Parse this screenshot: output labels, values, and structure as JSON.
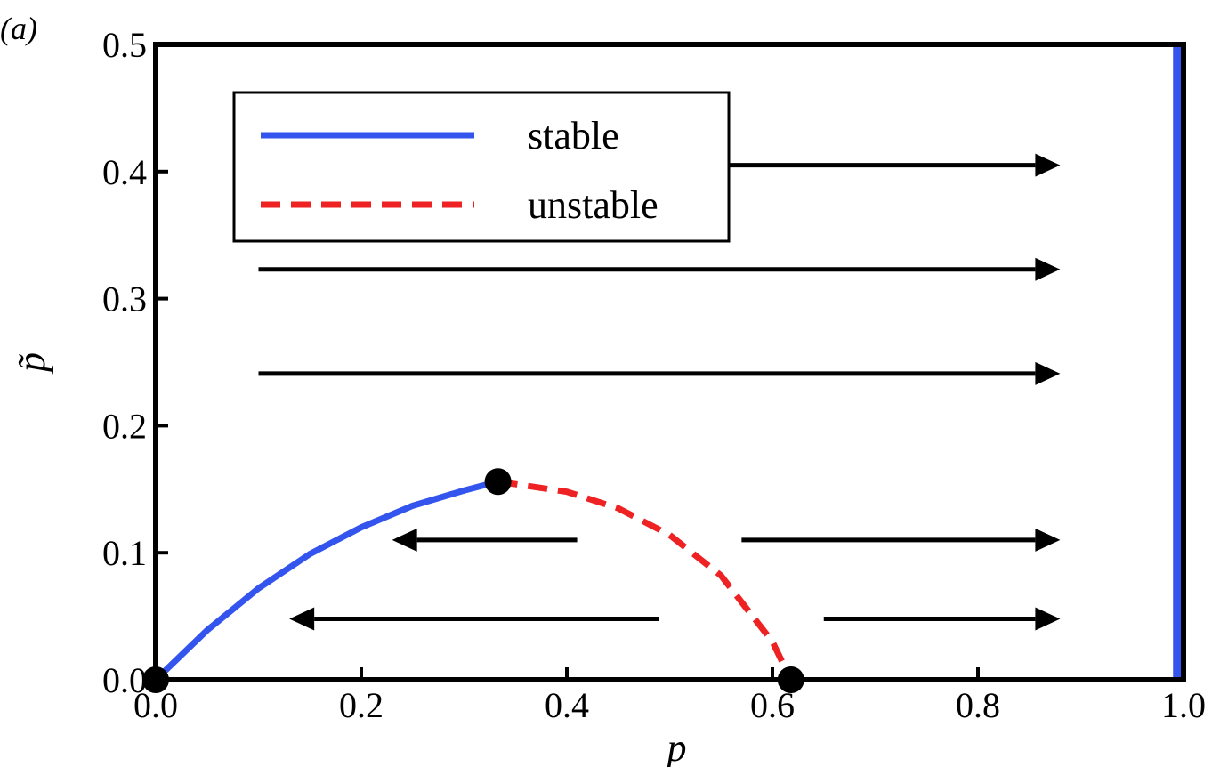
{
  "panel_label": "(a)",
  "chart_data": {
    "type": "line",
    "xlabel": "p",
    "ylabel": "p̃",
    "xlim": [
      0,
      1
    ],
    "ylim": [
      0,
      0.5
    ],
    "xticks": [
      "0.0",
      "0.2",
      "0.4",
      "0.6",
      "0.8",
      "1.0"
    ],
    "yticks": [
      "0.0",
      "0.1",
      "0.2",
      "0.3",
      "0.4",
      "0.5"
    ],
    "grid": false,
    "legend_position": "top-left",
    "legend": [
      {
        "label": "stable",
        "style": "solid",
        "color": "#3355ee"
      },
      {
        "label": "unstable",
        "style": "dashed",
        "color": "#ee2222"
      }
    ],
    "series": [
      {
        "name": "stable",
        "color": "#3355ee",
        "style": "solid",
        "x": [
          0.0,
          0.05,
          0.1,
          0.15,
          0.2,
          0.25,
          0.3,
          0.333
        ],
        "y": [
          0.0,
          0.039,
          0.072,
          0.099,
          0.12,
          0.137,
          0.149,
          0.156
        ]
      },
      {
        "name": "unstable",
        "color": "#ee2222",
        "style": "dashed",
        "x": [
          0.333,
          0.4,
          0.45,
          0.5,
          0.55,
          0.6,
          0.618
        ],
        "y": [
          0.156,
          0.148,
          0.135,
          0.114,
          0.082,
          0.03,
          0.0
        ]
      },
      {
        "name": "stable",
        "color": "#3355ee",
        "style": "solid",
        "x": [
          0.995,
          0.995
        ],
        "y": [
          0.0,
          0.5
        ]
      }
    ],
    "fixed_points": [
      {
        "x": 0.0,
        "y": 0.0
      },
      {
        "x": 0.333,
        "y": 0.156
      },
      {
        "x": 0.618,
        "y": 0.0
      }
    ],
    "arrows": [
      {
        "x_from": 0.55,
        "x_to": 0.88,
        "y": 0.405
      },
      {
        "x_from": 0.1,
        "x_to": 0.88,
        "y": 0.323
      },
      {
        "x_from": 0.1,
        "x_to": 0.88,
        "y": 0.241
      },
      {
        "x_from": 0.57,
        "x_to": 0.88,
        "y": 0.11
      },
      {
        "x_from": 0.65,
        "x_to": 0.88,
        "y": 0.048
      },
      {
        "x_from": 0.41,
        "x_to": 0.23,
        "y": 0.11
      },
      {
        "x_from": 0.49,
        "x_to": 0.13,
        "y": 0.048
      }
    ]
  }
}
